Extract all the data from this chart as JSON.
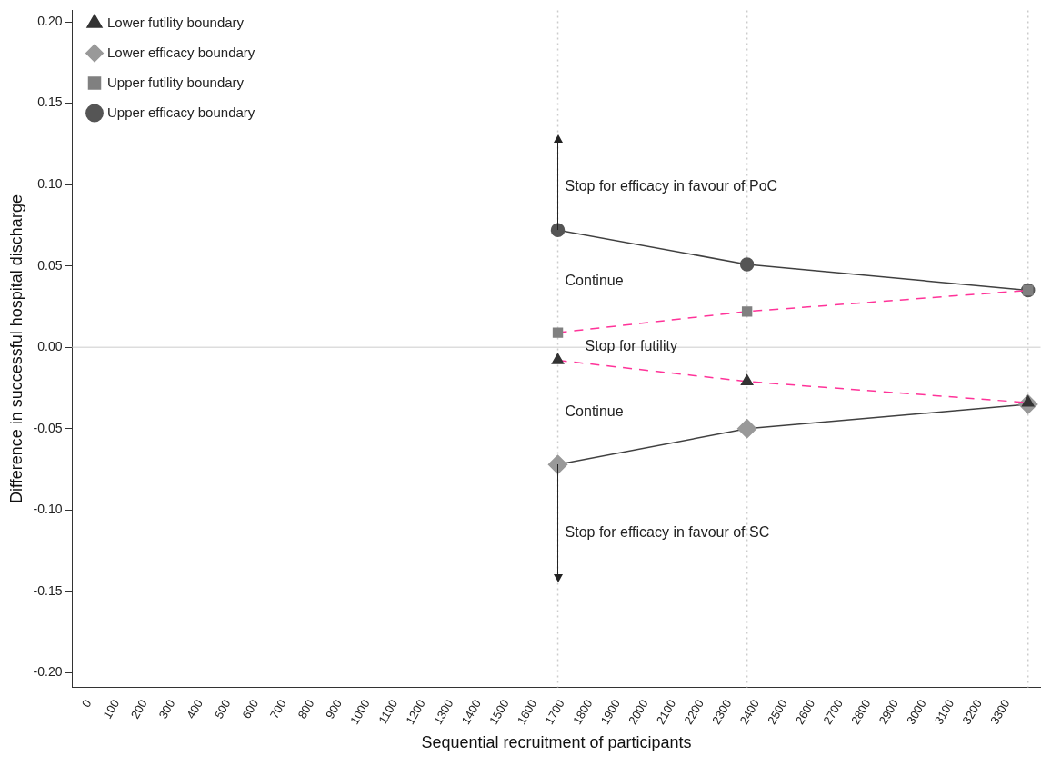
{
  "chart_data": {
    "type": "line",
    "xlabel": "Sequential recruitment of participants",
    "ylabel": "Difference in successful hospital discharge",
    "xlim": [
      -60,
      3420
    ],
    "xticks": [
      0,
      100,
      200,
      300,
      400,
      500,
      600,
      700,
      800,
      900,
      1000,
      1100,
      1200,
      1300,
      1400,
      1500,
      1600,
      1700,
      1800,
      1900,
      2000,
      2100,
      2200,
      2300,
      2400,
      2500,
      2600,
      2700,
      2800,
      2900,
      3000,
      3100,
      3200,
      3300
    ],
    "ylim": [
      -0.209,
      0.207
    ],
    "yticks": [
      {
        "value": -0.2,
        "label": "-0.20"
      },
      {
        "value": -0.15,
        "label": "-0.15"
      },
      {
        "value": -0.1,
        "label": "-0.10"
      },
      {
        "value": -0.05,
        "label": "-0.05"
      },
      {
        "value": 0,
        "label": "0.00"
      },
      {
        "value": 0.05,
        "label": "0.05"
      },
      {
        "value": 0.1,
        "label": "0.10"
      },
      {
        "value": 0.15,
        "label": "0.15"
      },
      {
        "value": 0.2,
        "label": "0.20"
      }
    ],
    "grid": false,
    "legend": "top left",
    "series": [
      {
        "name": "Upper efficacy boundary",
        "color": "#404040",
        "colors": [
          "#555555",
          "#555555",
          "#555555"
        ],
        "marker": "circle",
        "line_style": "solid",
        "x": [
          1685,
          2365,
          3375
        ],
        "values": [
          0.072,
          0.051,
          0.035
        ]
      },
      {
        "name": "Upper futility boundary",
        "color": "#ff3399",
        "colors": [
          "#808080",
          "#808080",
          "#808080"
        ],
        "marker": "square",
        "line_style": "dashed",
        "x": [
          1685,
          2365,
          3375
        ],
        "values": [
          0.009,
          0.022,
          0.035
        ]
      },
      {
        "name": "Lower efficacy boundary",
        "color": "#404040",
        "colors": [
          "#999999",
          "#999999",
          "#999999"
        ],
        "marker": "diamond",
        "line_style": "solid",
        "x": [
          1685,
          2365,
          3375
        ],
        "values": [
          -0.072,
          -0.05,
          -0.035
        ]
      },
      {
        "name": "Lower futility boundary",
        "color": "#ff3399",
        "colors": [
          "#333333",
          "#333333",
          "#333333"
        ],
        "marker": "triangle",
        "line_style": "dashed",
        "x": [
          1685,
          2365,
          3375
        ],
        "values": [
          -0.008,
          -0.021,
          -0.034
        ]
      }
    ],
    "ref_lines": [
      {
        "axis": "y",
        "value": 0,
        "color": "#dddddd",
        "line_style": "solid"
      },
      {
        "axis": "x",
        "value": 1685,
        "color": "#cccccc",
        "line_style": "dotted"
      },
      {
        "axis": "x",
        "value": 2365,
        "color": "#cccccc",
        "line_style": "dotted"
      },
      {
        "axis": "x",
        "value": 3375,
        "color": "#cccccc",
        "line_style": "dotted"
      }
    ],
    "annotations": [
      "Stop for efficacy in favour of PoC",
      "Continue",
      "Stop for futility",
      "Continue",
      "Stop for efficacy in favour of SC"
    ]
  }
}
